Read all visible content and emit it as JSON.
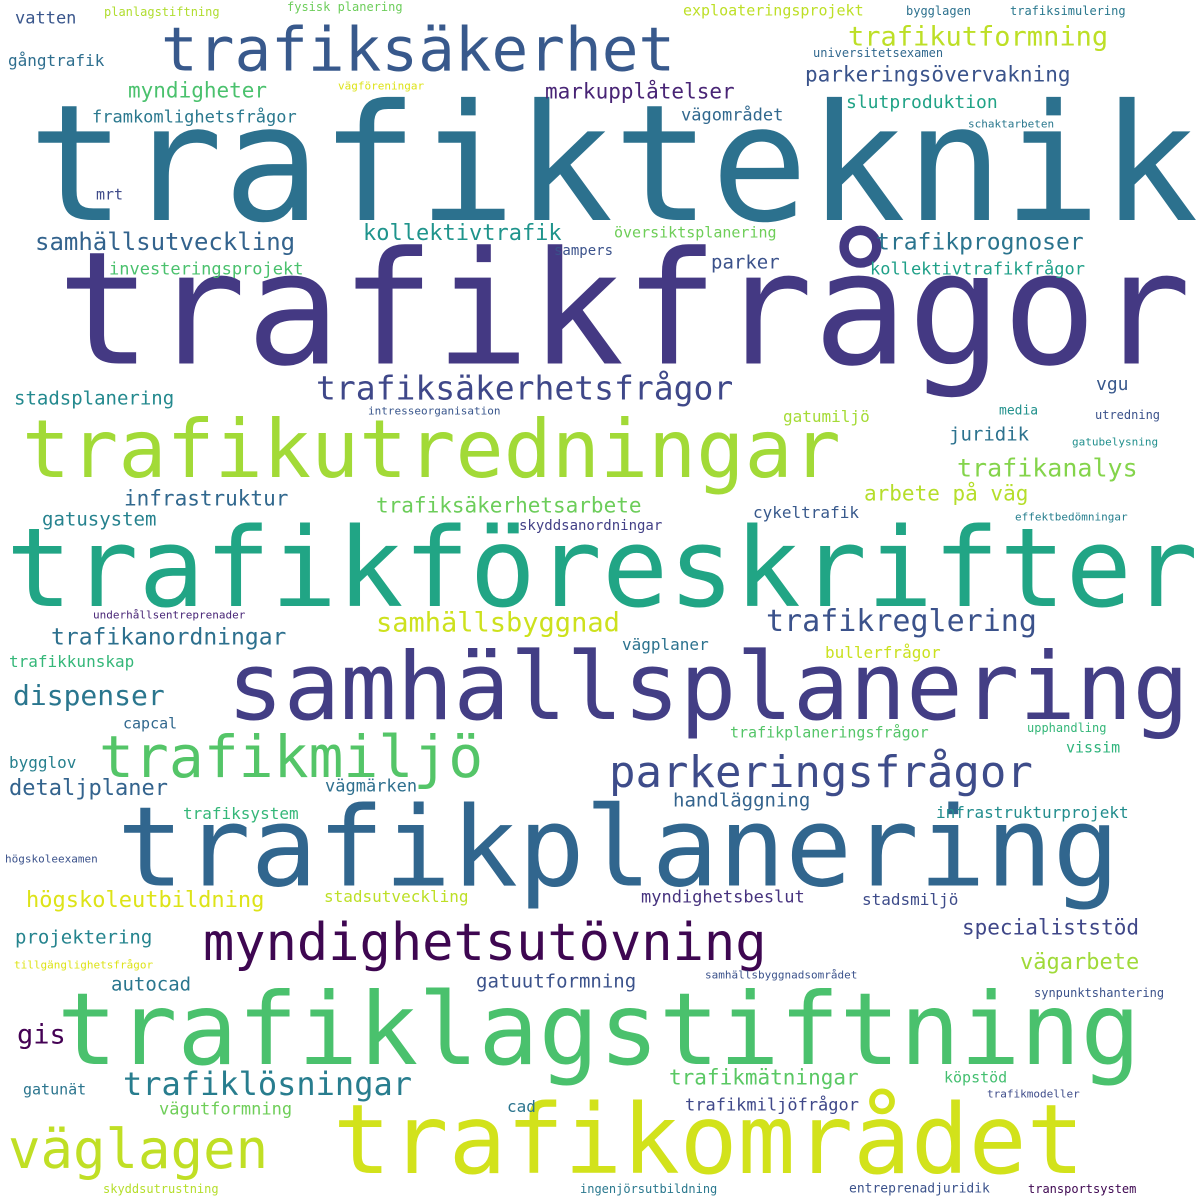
{
  "words": [
    {
      "text": "trafikteknik",
      "color": "#2c718e"
    },
    {
      "text": "trafikfrågor",
      "color": "#443983"
    },
    {
      "text": "trafikföreskrifter",
      "color": "#21a585"
    },
    {
      "text": "samhällsplanering",
      "color": "#433e85"
    },
    {
      "text": "trafikplanering",
      "color": "#31668e"
    },
    {
      "text": "trafiklagstiftning",
      "color": "#4ac16d"
    },
    {
      "text": "trafikområdet",
      "color": "#d2e21b"
    },
    {
      "text": "trafikutredningar",
      "color": "#a2da37"
    },
    {
      "text": "trafiksäkerhet",
      "color": "#38598c"
    },
    {
      "text": "myndighetsutövning",
      "color": "#3e0751"
    },
    {
      "text": "trafikmiljö",
      "color": "#54c568"
    },
    {
      "text": "parkeringsfrågor",
      "color": "#3e4c8a"
    },
    {
      "text": "väglagen",
      "color": "#c0df25"
    },
    {
      "text": "trafiksäkerhetsfrågor",
      "color": "#3f4889"
    },
    {
      "text": "trafikreglering",
      "color": "#3b528b"
    },
    {
      "text": "trafiklösningar",
      "color": "#287d8e"
    },
    {
      "text": "samhällsbyggnad",
      "color": "#cde11d"
    },
    {
      "text": "trafikutformning",
      "color": "#bddf26"
    },
    {
      "text": "dispenser",
      "color": "#2a768e"
    },
    {
      "text": "trafikanalys",
      "color": "#84d44b"
    },
    {
      "text": "trafikprognoser",
      "color": "#2b748e"
    },
    {
      "text": "samhällsutveckling",
      "color": "#33638d"
    },
    {
      "text": "trafikanordningar",
      "color": "#2d708e"
    },
    {
      "text": "kollektivtrafik",
      "color": "#1f948c"
    },
    {
      "text": "parkeringsövervakning",
      "color": "#3a538b"
    },
    {
      "text": "myndigheter",
      "color": "#4ac16d"
    },
    {
      "text": "markupplåtelser",
      "color": "#482475"
    },
    {
      "text": "infrastruktur",
      "color": "#31688e"
    },
    {
      "text": "trafiksäkerhetsarbete",
      "color": "#6ccd5a"
    },
    {
      "text": "detaljplaner",
      "color": "#33638d"
    },
    {
      "text": "myndighetsbeslut",
      "color": "#46327e"
    },
    {
      "text": "trafikmätningar",
      "color": "#5ac864"
    },
    {
      "text": "vägarbete",
      "color": "#a0da39"
    },
    {
      "text": "specialiststöd",
      "color": "#3f4788"
    },
    {
      "text": "högskoleutbildning",
      "color": "#dde318"
    },
    {
      "text": "projektering",
      "color": "#25848e"
    },
    {
      "text": "arbete på väg",
      "color": "#b5de2b"
    },
    {
      "text": "gatusystem",
      "color": "#26828e"
    },
    {
      "text": "handläggning",
      "color": "#33638d"
    },
    {
      "text": "stadsplanering",
      "color": "#23898e"
    },
    {
      "text": "juridik",
      "color": "#2c728e"
    },
    {
      "text": "gis",
      "color": "#440154"
    },
    {
      "text": "autocad",
      "color": "#2a768e"
    },
    {
      "text": "gatuutformning",
      "color": "#3b528b"
    },
    {
      "text": "vägutformning",
      "color": "#6ece58"
    },
    {
      "text": "trafikmiljöfrågor",
      "color": "#3f4889"
    },
    {
      "text": "investeringsprojekt",
      "color": "#4ac16d"
    },
    {
      "text": "kollektivtrafikfrågor",
      "color": "#1fa088"
    },
    {
      "text": "framkomlighetsfrågor",
      "color": "#2a788e"
    },
    {
      "text": "vägområdet",
      "color": "#31688e"
    },
    {
      "text": "slutproduktion",
      "color": "#20a386"
    },
    {
      "text": "parker",
      "color": "#3b528b"
    },
    {
      "text": "vgu",
      "color": "#38588c"
    },
    {
      "text": "gatumiljö",
      "color": "#a5db36"
    },
    {
      "text": "infrastrukturprojekt",
      "color": "#228d8d"
    },
    {
      "text": "trafiksystem",
      "color": "#35b779"
    },
    {
      "text": "vägmärken",
      "color": "#2e6f8e"
    },
    {
      "text": "stadsmiljö",
      "color": "#3e4c8a"
    },
    {
      "text": "stadsutveckling",
      "color": "#bddf26"
    },
    {
      "text": "trafikplaneringsfrågor",
      "color": "#54c568"
    },
    {
      "text": "vägplaner",
      "color": "#2c728e"
    },
    {
      "text": "bullerfrågor",
      "color": "#cae11f"
    },
    {
      "text": "cykeltrafik",
      "color": "#38598c"
    },
    {
      "text": "skyddsanordningar",
      "color": "#424086"
    },
    {
      "text": "översiktsplanering",
      "color": "#6ece58"
    },
    {
      "text": "vatten",
      "color": "#39568c"
    },
    {
      "text": "gångtrafik",
      "color": "#2e6e8e"
    },
    {
      "text": "exploateringsprojekt",
      "color": "#bddf26"
    },
    {
      "text": "trafiksimulering",
      "color": "#2a788e"
    },
    {
      "text": "bygglagen",
      "color": "#2c718e"
    },
    {
      "text": "vissim",
      "color": "#2fb47c"
    },
    {
      "text": "köpstöd",
      "color": "#44bf70"
    },
    {
      "text": "cad",
      "color": "#2b748e"
    },
    {
      "text": "gatunät",
      "color": "#2b758e"
    },
    {
      "text": "capcal",
      "color": "#31688e"
    },
    {
      "text": "bygglov",
      "color": "#27808e"
    },
    {
      "text": "trafikkunskap",
      "color": "#35b779"
    },
    {
      "text": "mrt",
      "color": "#3e4a89"
    },
    {
      "text": "media",
      "color": "#21918c"
    },
    {
      "text": "sampers",
      "color": "#3b528b"
    },
    {
      "text": "planlagstiftning",
      "color": "#b0dd2f"
    },
    {
      "text": "fysisk planering",
      "color": "#6ccd5a"
    },
    {
      "text": "universitetsexamen",
      "color": "#31688e"
    },
    {
      "text": "vägföreningar",
      "color": "#dde318"
    },
    {
      "text": "schaktarbeten",
      "color": "#2a788e"
    },
    {
      "text": "intresseorganisation",
      "color": "#39568c"
    },
    {
      "text": "utredning",
      "color": "#3b528b"
    },
    {
      "text": "gatubelysning",
      "color": "#218f8d"
    },
    {
      "text": "effektbedömningar",
      "color": "#277f8e"
    },
    {
      "text": "underhållsentreprenader",
      "color": "#482576"
    },
    {
      "text": "upphandling",
      "color": "#35b779"
    },
    {
      "text": "högskoleexamen",
      "color": "#3b528b"
    },
    {
      "text": "tillgänglighetsfrågor",
      "color": "#dde318"
    },
    {
      "text": "samhällsbyggnadsområdet",
      "color": "#3b528b"
    },
    {
      "text": "synpunktshantering",
      "color": "#3b528b"
    },
    {
      "text": "trafikmodeller",
      "color": "#3e4c8a"
    },
    {
      "text": "skyddsutrustning",
      "color": "#b5de2b"
    },
    {
      "text": "ingenjörsutbildning",
      "color": "#2a788e"
    },
    {
      "text": "entreprenadjuridik",
      "color": "#3b528b"
    },
    {
      "text": "transportsystem",
      "color": "#3e0751"
    }
  ]
}
